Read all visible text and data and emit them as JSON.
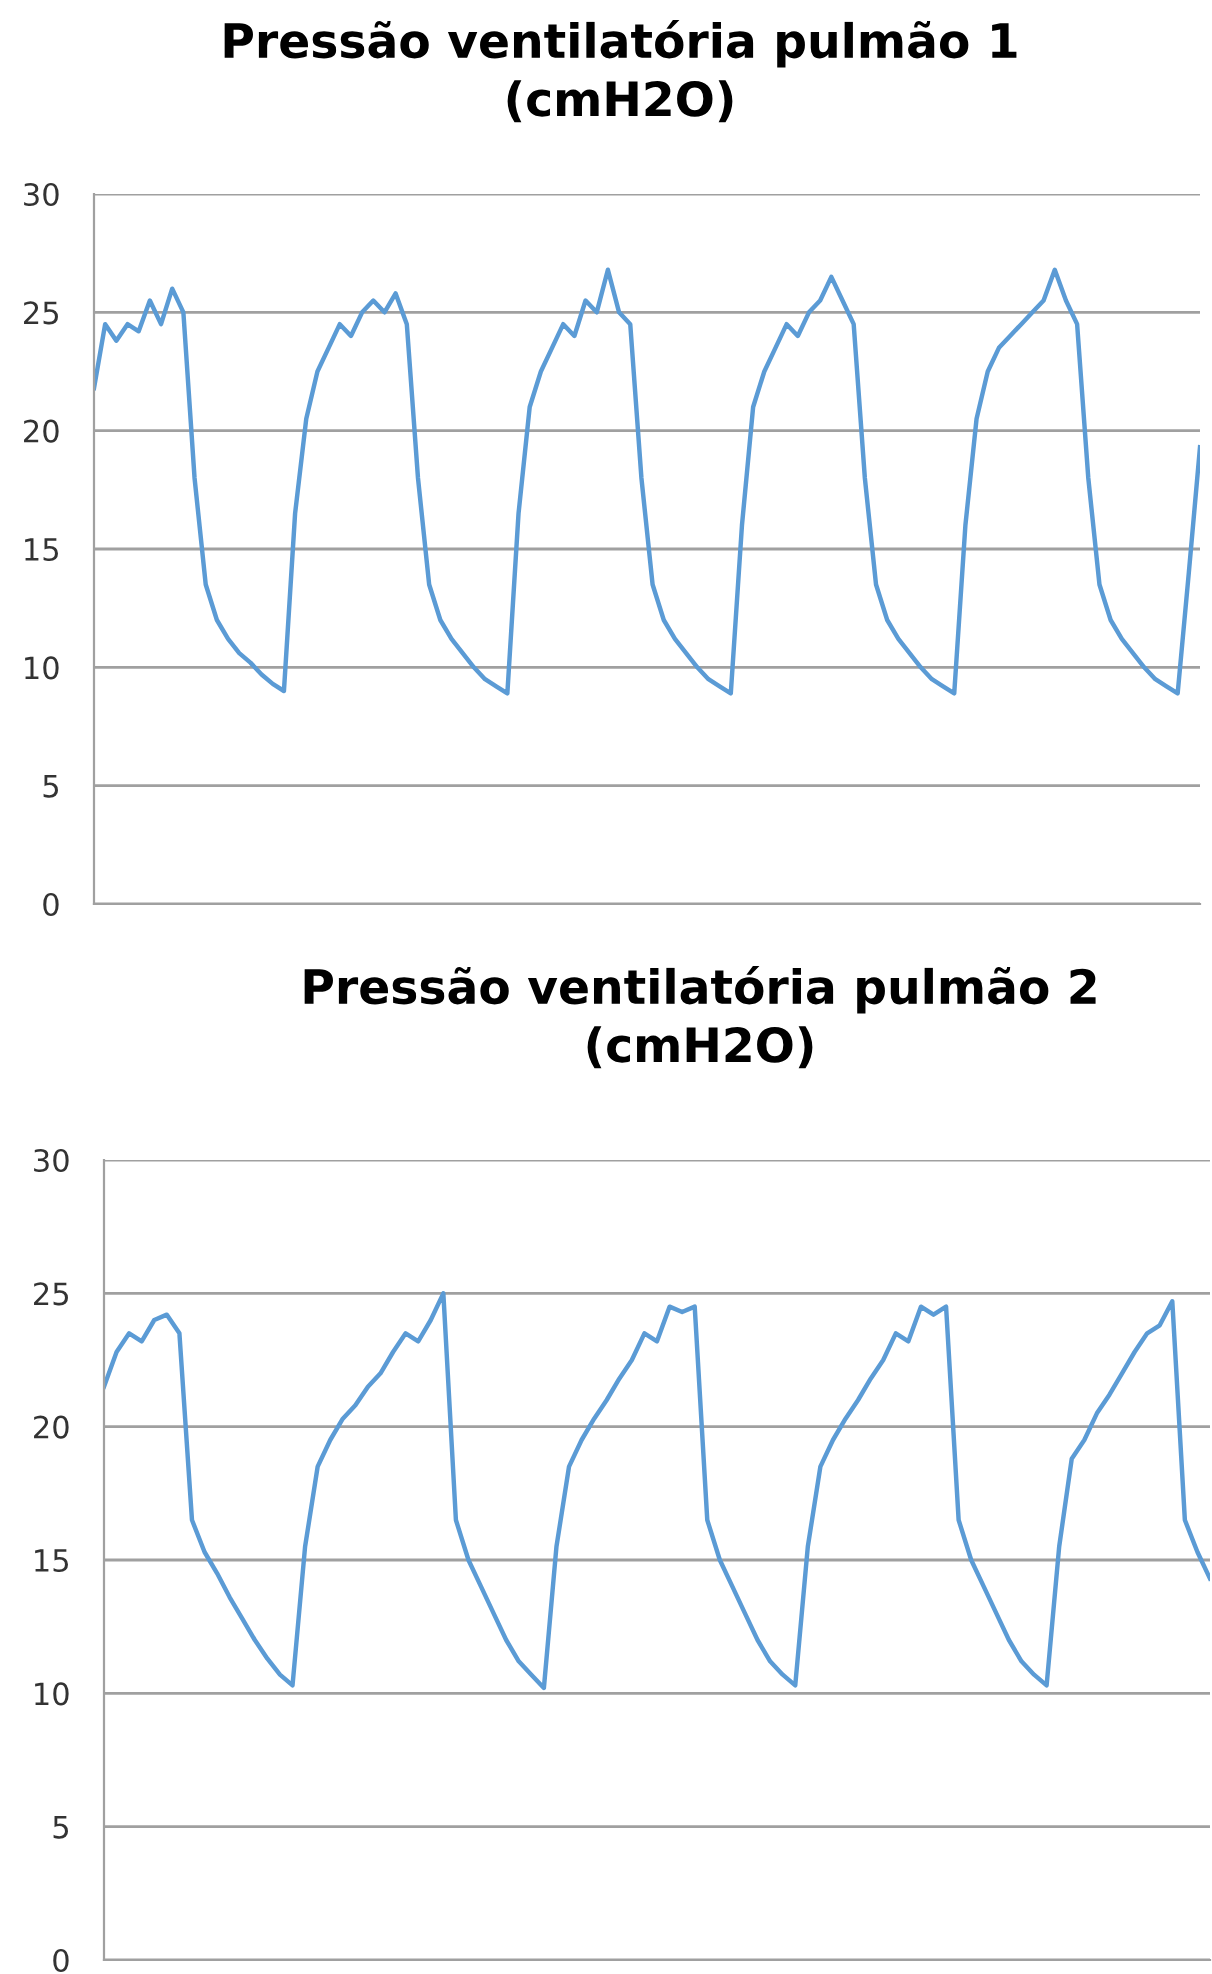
{
  "chart_data": [
    {
      "type": "line",
      "title": "Pressão ventilatória pulmão 1\n(cmH2O)",
      "categories": [
        null,
        null,
        null,
        null,
        null,
        null,
        null,
        null,
        null,
        null,
        null,
        null,
        null,
        null,
        null,
        null,
        null,
        null,
        null,
        null,
        null,
        null,
        null,
        null,
        null,
        null,
        null,
        null,
        null,
        null,
        null,
        null,
        null,
        null,
        null,
        null,
        null,
        null,
        null,
        null,
        null,
        null,
        null,
        null,
        null,
        null,
        null,
        null,
        null,
        null,
        null,
        null,
        null,
        null,
        null,
        null,
        null,
        null,
        null,
        null,
        null,
        null,
        null,
        null,
        null,
        null,
        null,
        null,
        null,
        null,
        null,
        null,
        null,
        null,
        null,
        null,
        null,
        null,
        null,
        null,
        null,
        null,
        null,
        null,
        null,
        null,
        null,
        null,
        null,
        null,
        null,
        null,
        null,
        null,
        null,
        null,
        null,
        null,
        null,
        null
      ],
      "series": [
        {
          "color": "#5b9bd5",
          "values": [
            21.8,
            24.5,
            23.8,
            24.5,
            24.2,
            25.5,
            24.5,
            26.0,
            25.0,
            18.0,
            13.5,
            12.0,
            11.2,
            10.6,
            10.2,
            9.7,
            9.3,
            9.0,
            16.5,
            20.5,
            22.5,
            23.5,
            24.5,
            24.0,
            25.0,
            25.5,
            25.0,
            25.8,
            24.5,
            18.0,
            13.5,
            12.0,
            11.2,
            10.6,
            10.0,
            9.5,
            9.2,
            8.9,
            16.5,
            21.0,
            22.5,
            23.5,
            24.5,
            24.0,
            25.5,
            25.0,
            26.8,
            25.0,
            24.5,
            18.0,
            13.5,
            12.0,
            11.2,
            10.6,
            10.0,
            9.5,
            9.2,
            8.9,
            16.0,
            21.0,
            22.5,
            23.5,
            24.5,
            24.0,
            25.0,
            25.5,
            26.5,
            25.5,
            24.5,
            18.0,
            13.5,
            12.0,
            11.2,
            10.6,
            10.0,
            9.5,
            9.2,
            8.9,
            16.0,
            20.5,
            22.5,
            23.5,
            24.0,
            24.5,
            25.0,
            25.5,
            26.8,
            25.5,
            24.5,
            18.0,
            13.5,
            12.0,
            11.2,
            10.6,
            10.0,
            9.5,
            9.2,
            8.9,
            14.0,
            19.3
          ]
        }
      ],
      "ylim": [
        0,
        30
      ],
      "yticks": [
        0,
        5,
        10,
        15,
        20,
        25,
        30
      ],
      "grid": "y",
      "tick_labels": "y",
      "marker": "none",
      "line_style": "solid"
    },
    {
      "type": "line",
      "title": "Pressão ventilatória pulmão 2\n(cmH2O)",
      "categories": [
        null,
        null,
        null,
        null,
        null,
        null,
        null,
        null,
        null,
        null,
        null,
        null,
        null,
        null,
        null,
        null,
        null,
        null,
        null,
        null,
        null,
        null,
        null,
        null,
        null,
        null,
        null,
        null,
        null,
        null,
        null,
        null,
        null,
        null,
        null,
        null,
        null,
        null,
        null,
        null,
        null,
        null,
        null,
        null,
        null,
        null,
        null,
        null,
        null,
        null,
        null,
        null,
        null,
        null,
        null,
        null,
        null,
        null,
        null,
        null,
        null,
        null,
        null,
        null,
        null,
        null,
        null,
        null,
        null,
        null,
        null,
        null,
        null,
        null,
        null,
        null,
        null,
        null,
        null,
        null,
        null,
        null,
        null,
        null,
        null,
        null,
        null,
        null,
        null
      ],
      "series": [
        {
          "color": "#5b9bd5",
          "values": [
            21.5,
            22.8,
            23.5,
            23.2,
            24.0,
            24.2,
            23.5,
            16.5,
            15.3,
            14.5,
            13.6,
            12.8,
            12.0,
            11.3,
            10.7,
            10.3,
            15.5,
            18.5,
            19.5,
            20.3,
            20.8,
            21.5,
            22.0,
            22.8,
            23.5,
            23.2,
            24.0,
            25.0,
            16.5,
            15.0,
            14.0,
            13.0,
            12.0,
            11.2,
            10.7,
            10.2,
            15.5,
            18.5,
            19.5,
            20.3,
            21.0,
            21.8,
            22.5,
            23.5,
            23.2,
            24.5,
            24.3,
            24.5,
            16.5,
            15.0,
            14.0,
            13.0,
            12.0,
            11.2,
            10.7,
            10.3,
            15.5,
            18.5,
            19.5,
            20.3,
            21.0,
            21.8,
            22.5,
            23.5,
            23.2,
            24.5,
            24.2,
            24.5,
            16.5,
            15.0,
            14.0,
            13.0,
            12.0,
            11.2,
            10.7,
            10.3,
            15.5,
            18.8,
            19.5,
            20.5,
            21.2,
            22.0,
            22.8,
            23.5,
            23.8,
            24.7,
            16.5,
            15.3,
            14.3
          ]
        }
      ],
      "ylim": [
        0,
        30
      ],
      "yticks": [
        0,
        5,
        10,
        15,
        20,
        25,
        30
      ],
      "grid": "y",
      "tick_labels": "y",
      "marker": "none",
      "line_style": "solid"
    }
  ]
}
